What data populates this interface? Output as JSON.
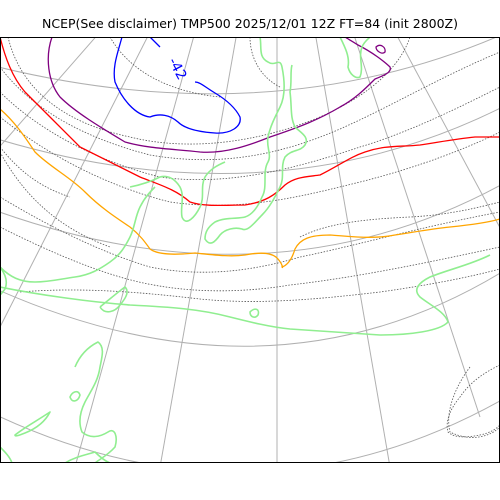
{
  "title": "NCEP(See disclaimer) TMP500 2025/12/01 12Z FT=84 (init 2800Z)",
  "map": {
    "projection": "polar-stereographic",
    "colors": {
      "coastline": "#90ee90",
      "graticule": "#b0b0b0",
      "isotherm_dotted": "#555555",
      "minus42": "#0000ff",
      "minus36": "#800080",
      "minus30": "#ff0000",
      "minus24": "#ffa500"
    },
    "contour_labels": [
      {
        "text": "-42",
        "color": "#0000ff"
      }
    ]
  }
}
